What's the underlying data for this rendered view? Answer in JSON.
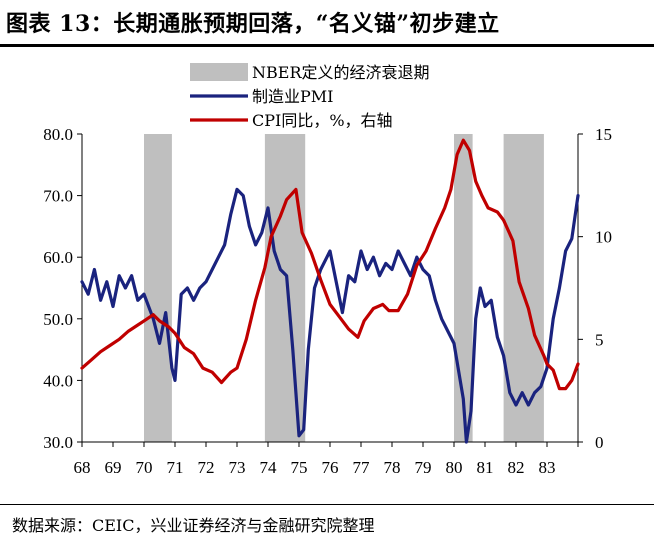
{
  "title": "图表 13：长期通胀预期回落，“名义锚”初步建立",
  "source": "数据来源：CEIC，兴业证券经济与金融研究院整理",
  "colors": {
    "pmi": "#1a237e",
    "cpi": "#c00000",
    "recession": "#bfbfbf"
  },
  "chart_data": {
    "type": "line",
    "legend": [
      "NBER定义的经济衰退期",
      "制造业PMI",
      "CPI同比，%，右轴"
    ],
    "legend_placement": "top-center",
    "grid": false,
    "x_tick_labels": [
      "68",
      "69",
      "70",
      "71",
      "72",
      "73",
      "74",
      "75",
      "76",
      "77",
      "78",
      "79",
      "80",
      "81",
      "82",
      "83"
    ],
    "x_range": [
      1968.0,
      1984.0
    ],
    "y_left": {
      "ticks": [
        "30.0",
        "40.0",
        "50.0",
        "60.0",
        "70.0",
        "80.0"
      ],
      "range": [
        30,
        80
      ]
    },
    "y_right": {
      "ticks": [
        "0",
        "5",
        "10",
        "15"
      ],
      "range": [
        0,
        15
      ]
    },
    "recessions": [
      [
        1970.0,
        1970.9
      ],
      [
        1973.9,
        1975.2
      ],
      [
        1980.0,
        1980.6
      ],
      [
        1981.6,
        1982.9
      ]
    ],
    "series": [
      {
        "name": "制造业PMI",
        "axis": "left",
        "points": [
          [
            1968.0,
            56.0
          ],
          [
            1968.2,
            54.0
          ],
          [
            1968.4,
            58.0
          ],
          [
            1968.6,
            53.0
          ],
          [
            1968.8,
            56.0
          ],
          [
            1969.0,
            52.0
          ],
          [
            1969.2,
            57.0
          ],
          [
            1969.4,
            55.0
          ],
          [
            1969.6,
            57.0
          ],
          [
            1969.8,
            53.0
          ],
          [
            1970.0,
            54.0
          ],
          [
            1970.3,
            50.0
          ],
          [
            1970.5,
            46.0
          ],
          [
            1970.7,
            51.0
          ],
          [
            1970.9,
            42.0
          ],
          [
            1971.0,
            40.0
          ],
          [
            1971.2,
            54.0
          ],
          [
            1971.4,
            55.0
          ],
          [
            1971.6,
            53.0
          ],
          [
            1971.8,
            55.0
          ],
          [
            1972.0,
            56.0
          ],
          [
            1972.2,
            58.0
          ],
          [
            1972.4,
            60.0
          ],
          [
            1972.6,
            62.0
          ],
          [
            1972.8,
            67.0
          ],
          [
            1973.0,
            71.0
          ],
          [
            1973.2,
            70.0
          ],
          [
            1973.4,
            65.0
          ],
          [
            1973.6,
            62.0
          ],
          [
            1973.8,
            64.0
          ],
          [
            1974.0,
            68.0
          ],
          [
            1974.2,
            61.0
          ],
          [
            1974.4,
            58.0
          ],
          [
            1974.6,
            57.0
          ],
          [
            1974.8,
            45.0
          ],
          [
            1975.0,
            31.0
          ],
          [
            1975.15,
            32.0
          ],
          [
            1975.3,
            45.0
          ],
          [
            1975.5,
            55.0
          ],
          [
            1975.7,
            58.0
          ],
          [
            1975.9,
            60.0
          ],
          [
            1976.0,
            61.0
          ],
          [
            1976.2,
            56.0
          ],
          [
            1976.4,
            51.0
          ],
          [
            1976.6,
            57.0
          ],
          [
            1976.8,
            56.0
          ],
          [
            1977.0,
            61.0
          ],
          [
            1977.2,
            58.0
          ],
          [
            1977.4,
            60.0
          ],
          [
            1977.6,
            57.0
          ],
          [
            1977.8,
            59.0
          ],
          [
            1978.0,
            58.0
          ],
          [
            1978.2,
            61.0
          ],
          [
            1978.4,
            59.0
          ],
          [
            1978.6,
            57.0
          ],
          [
            1978.8,
            60.0
          ],
          [
            1979.0,
            58.0
          ],
          [
            1979.2,
            57.0
          ],
          [
            1979.4,
            53.0
          ],
          [
            1979.6,
            50.0
          ],
          [
            1979.8,
            48.0
          ],
          [
            1980.0,
            46.0
          ],
          [
            1980.2,
            40.0
          ],
          [
            1980.3,
            37.0
          ],
          [
            1980.4,
            30.0
          ],
          [
            1980.55,
            35.0
          ],
          [
            1980.7,
            50.0
          ],
          [
            1980.85,
            55.0
          ],
          [
            1981.0,
            52.0
          ],
          [
            1981.2,
            53.0
          ],
          [
            1981.4,
            47.0
          ],
          [
            1981.6,
            44.0
          ],
          [
            1981.8,
            38.0
          ],
          [
            1982.0,
            36.0
          ],
          [
            1982.2,
            38.0
          ],
          [
            1982.4,
            36.0
          ],
          [
            1982.6,
            38.0
          ],
          [
            1982.8,
            39.0
          ],
          [
            1983.0,
            42.0
          ],
          [
            1983.2,
            50.0
          ],
          [
            1983.4,
            55.0
          ],
          [
            1983.6,
            61.0
          ],
          [
            1983.8,
            63.0
          ],
          [
            1984.0,
            70.0
          ]
        ]
      },
      {
        "name": "CPI同比，%，右轴",
        "axis": "right",
        "points": [
          [
            1968.0,
            3.6
          ],
          [
            1968.3,
            4.0
          ],
          [
            1968.6,
            4.4
          ],
          [
            1968.9,
            4.7
          ],
          [
            1969.2,
            5.0
          ],
          [
            1969.5,
            5.4
          ],
          [
            1969.8,
            5.7
          ],
          [
            1970.0,
            5.9
          ],
          [
            1970.3,
            6.2
          ],
          [
            1970.5,
            5.9
          ],
          [
            1970.8,
            5.6
          ],
          [
            1971.0,
            5.3
          ],
          [
            1971.3,
            4.6
          ],
          [
            1971.6,
            4.3
          ],
          [
            1971.9,
            3.6
          ],
          [
            1972.2,
            3.4
          ],
          [
            1972.5,
            2.9
          ],
          [
            1972.8,
            3.4
          ],
          [
            1973.0,
            3.6
          ],
          [
            1973.3,
            5.0
          ],
          [
            1973.6,
            6.9
          ],
          [
            1973.9,
            8.5
          ],
          [
            1974.1,
            10.0
          ],
          [
            1974.4,
            11.0
          ],
          [
            1974.6,
            11.8
          ],
          [
            1974.9,
            12.3
          ],
          [
            1975.1,
            10.2
          ],
          [
            1975.4,
            9.2
          ],
          [
            1975.7,
            7.9
          ],
          [
            1976.0,
            6.7
          ],
          [
            1976.3,
            6.1
          ],
          [
            1976.6,
            5.5
          ],
          [
            1976.9,
            5.1
          ],
          [
            1977.1,
            5.9
          ],
          [
            1977.4,
            6.5
          ],
          [
            1977.7,
            6.7
          ],
          [
            1977.9,
            6.4
          ],
          [
            1978.2,
            6.4
          ],
          [
            1978.5,
            7.2
          ],
          [
            1978.8,
            8.6
          ],
          [
            1979.1,
            9.3
          ],
          [
            1979.4,
            10.4
          ],
          [
            1979.7,
            11.4
          ],
          [
            1979.9,
            12.3
          ],
          [
            1980.1,
            14.0
          ],
          [
            1980.3,
            14.7
          ],
          [
            1980.5,
            14.2
          ],
          [
            1980.7,
            12.7
          ],
          [
            1980.9,
            12.0
          ],
          [
            1981.1,
            11.4
          ],
          [
            1981.4,
            11.2
          ],
          [
            1981.6,
            10.8
          ],
          [
            1981.9,
            9.8
          ],
          [
            1982.1,
            7.8
          ],
          [
            1982.4,
            6.5
          ],
          [
            1982.6,
            5.2
          ],
          [
            1982.9,
            4.2
          ],
          [
            1983.0,
            3.8
          ],
          [
            1983.2,
            3.5
          ],
          [
            1983.4,
            2.6
          ],
          [
            1983.6,
            2.6
          ],
          [
            1983.8,
            3.0
          ],
          [
            1984.0,
            3.8
          ]
        ]
      }
    ]
  }
}
